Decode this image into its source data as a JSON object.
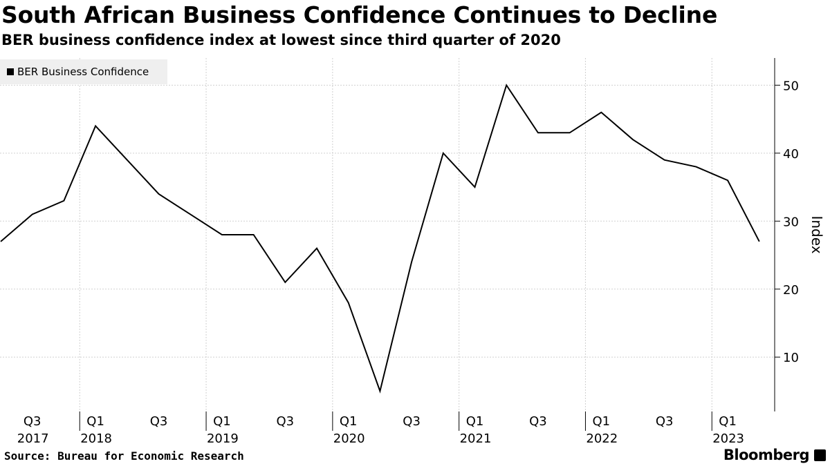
{
  "title": "South African Business Confidence Continues to Decline",
  "subtitle": "BER business confidence index at lowest since third quarter of 2020",
  "legend": {
    "label": "BER Business Confidence",
    "color": "#000000"
  },
  "source": "Source: Bureau for Economic Research",
  "brand": "Bloomberg",
  "chart_data": {
    "type": "line",
    "title": "South African Business Confidence Continues to Decline",
    "subtitle": "BER business confidence index at lowest since third quarter of 2020",
    "xlabel": "",
    "ylabel": "Index",
    "y_axis_side": "right",
    "ylim": [
      2,
      54
    ],
    "yticks": [
      10,
      20,
      30,
      40,
      50
    ],
    "grid": true,
    "legend_position": "top-left",
    "x": [
      "2017 Q2",
      "2017 Q3",
      "2017 Q4",
      "2018 Q1",
      "2018 Q2",
      "2018 Q3",
      "2018 Q4",
      "2019 Q1",
      "2019 Q2",
      "2019 Q3",
      "2019 Q4",
      "2020 Q1",
      "2020 Q2",
      "2020 Q3",
      "2020 Q4",
      "2021 Q1",
      "2021 Q2",
      "2021 Q3",
      "2021 Q4",
      "2022 Q1",
      "2022 Q2",
      "2022 Q3",
      "2022 Q4",
      "2023 Q1",
      "2023 Q2"
    ],
    "series": [
      {
        "name": "BER Business Confidence",
        "color": "#000000",
        "values": [
          27,
          31,
          33,
          44,
          39,
          34,
          31,
          28,
          28,
          21,
          26,
          18,
          5,
          24,
          40,
          35,
          50,
          43,
          43,
          46,
          42,
          39,
          38,
          36,
          27
        ]
      }
    ],
    "x_tick_labels": [
      {
        "index": 1,
        "quarter": "Q3",
        "year": "2017"
      },
      {
        "index": 3,
        "quarter": "Q1",
        "year": "2018"
      },
      {
        "index": 5,
        "quarter": "Q3",
        "year": ""
      },
      {
        "index": 7,
        "quarter": "Q1",
        "year": "2019"
      },
      {
        "index": 9,
        "quarter": "Q3",
        "year": ""
      },
      {
        "index": 11,
        "quarter": "Q1",
        "year": "2020"
      },
      {
        "index": 13,
        "quarter": "Q3",
        "year": ""
      },
      {
        "index": 15,
        "quarter": "Q1",
        "year": "2021"
      },
      {
        "index": 17,
        "quarter": "Q3",
        "year": ""
      },
      {
        "index": 19,
        "quarter": "Q1",
        "year": "2022"
      },
      {
        "index": 21,
        "quarter": "Q3",
        "year": ""
      },
      {
        "index": 23,
        "quarter": "Q1",
        "year": "2023"
      }
    ],
    "year_gridlines_between": [
      [
        2,
        3
      ],
      [
        6,
        7
      ],
      [
        10,
        11
      ],
      [
        14,
        15
      ],
      [
        18,
        19
      ],
      [
        22,
        23
      ]
    ]
  }
}
